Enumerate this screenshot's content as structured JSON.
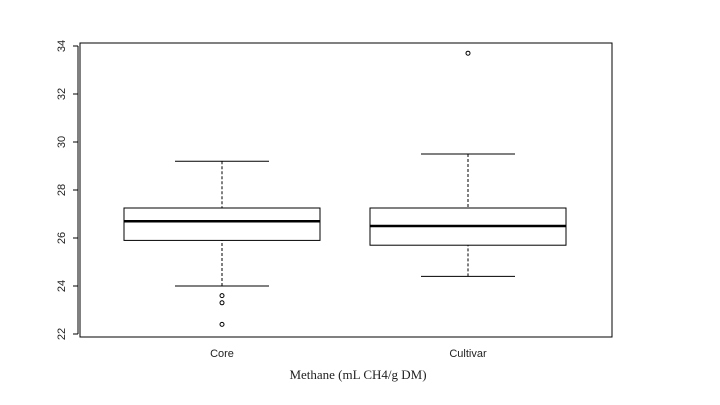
{
  "chart_data": {
    "type": "box",
    "xlabel": "Methane (mL CH4/g DM)",
    "categories": [
      "Core",
      "Cultivar"
    ],
    "boxes": [
      {
        "whisker_low": 24.0,
        "q1": 25.9,
        "median": 26.7,
        "q3": 27.25,
        "whisker_high": 29.2,
        "outliers": [
          23.6,
          23.3,
          22.4
        ]
      },
      {
        "whisker_low": 24.4,
        "q1": 25.7,
        "median": 26.5,
        "q3": 27.25,
        "whisker_high": 29.5,
        "outliers": [
          33.7
        ]
      }
    ],
    "color": "#000000",
    "ylim": [
      22,
      34
    ],
    "yticks": [
      22,
      24,
      26,
      28,
      30,
      32,
      34
    ]
  }
}
